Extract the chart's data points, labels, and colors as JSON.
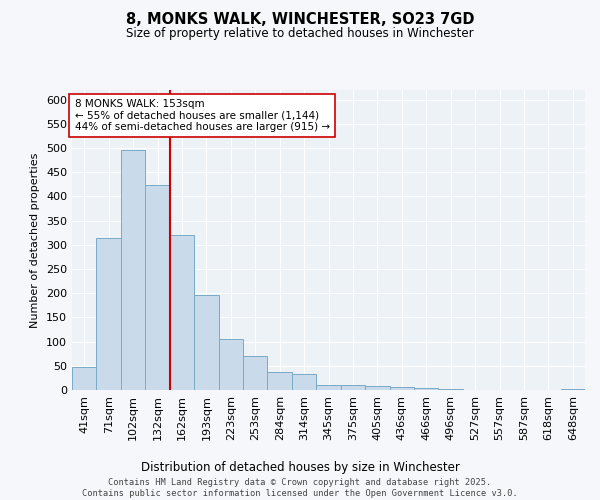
{
  "title1": "8, MONKS WALK, WINCHESTER, SO23 7GD",
  "title2": "Size of property relative to detached houses in Winchester",
  "xlabel": "Distribution of detached houses by size in Winchester",
  "ylabel": "Number of detached properties",
  "categories": [
    "41sqm",
    "71sqm",
    "102sqm",
    "132sqm",
    "162sqm",
    "193sqm",
    "223sqm",
    "253sqm",
    "284sqm",
    "314sqm",
    "345sqm",
    "375sqm",
    "405sqm",
    "436sqm",
    "466sqm",
    "496sqm",
    "527sqm",
    "557sqm",
    "587sqm",
    "618sqm",
    "648sqm"
  ],
  "values": [
    48,
    314,
    496,
    424,
    320,
    196,
    105,
    70,
    38,
    34,
    11,
    11,
    8,
    6,
    5,
    3,
    1,
    0,
    0,
    0,
    2
  ],
  "bar_color": "#c9daea",
  "bar_edge_color": "#7aaac8",
  "background_color": "#edf2f7",
  "grid_color": "#ffffff",
  "vline_x": 3.5,
  "vline_color": "#cc0000",
  "annotation_text": "8 MONKS WALK: 153sqm\n← 55% of detached houses are smaller (1,144)\n44% of semi-detached houses are larger (915) →",
  "annotation_box_color": "#ffffff",
  "annotation_box_edge": "#cc0000",
  "footer_text": "Contains HM Land Registry data © Crown copyright and database right 2025.\nContains public sector information licensed under the Open Government Licence v3.0.",
  "ylim": [
    0,
    620
  ],
  "yticks": [
    0,
    50,
    100,
    150,
    200,
    250,
    300,
    350,
    400,
    450,
    500,
    550,
    600
  ],
  "fig_bg": "#f5f7fa"
}
